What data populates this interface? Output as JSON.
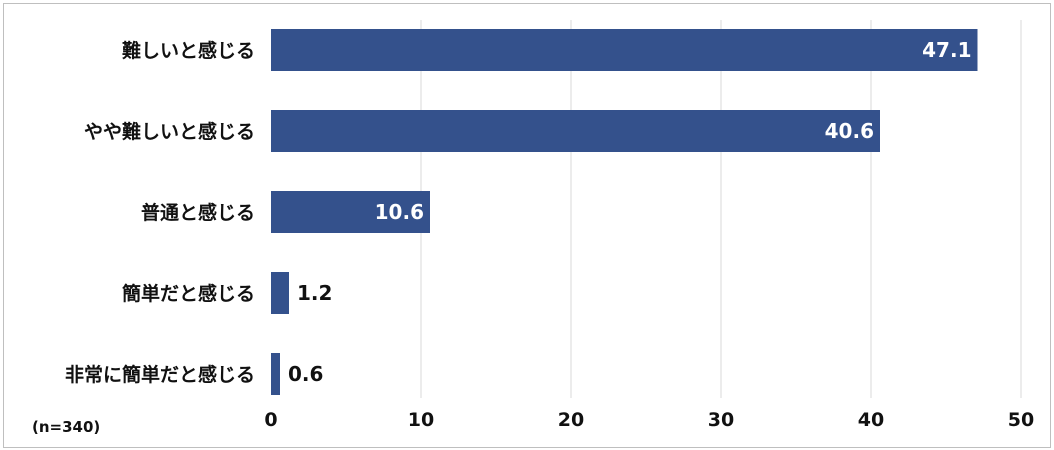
{
  "chart_data": {
    "type": "bar",
    "orientation": "horizontal",
    "categories": [
      "難しいと感じる",
      "やや難しいと感じる",
      "普通と感じる",
      "簡単だと感じる",
      "非常に簡単だと感じる"
    ],
    "values": [
      47.1,
      40.6,
      10.6,
      1.2,
      0.6
    ],
    "value_labels": [
      "47.1",
      "40.6",
      "10.6",
      "1.2",
      "0.6"
    ],
    "xlim": [
      0,
      50
    ],
    "xticks": [
      "0",
      "10",
      "20",
      "30",
      "40",
      "50"
    ],
    "grid": true,
    "bar_color": "#34518C",
    "note": "(n=340)"
  }
}
